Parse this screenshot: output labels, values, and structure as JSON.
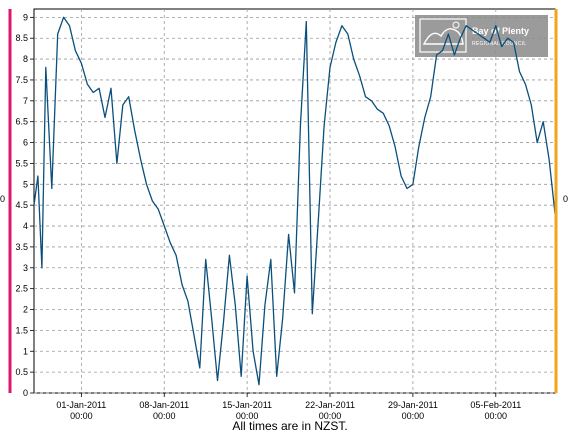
{
  "chart_data": {
    "type": "line",
    "title": "",
    "xlabel": "",
    "ylabel": "",
    "footnote": "All times are in NZST.",
    "ylim": [
      0,
      9.2
    ],
    "yticks": [
      "0",
      "0.5",
      "1",
      "1.5",
      "2",
      "2.5",
      "3",
      "3.5",
      "4",
      "4.5",
      "5",
      "5.5",
      "6",
      "6.5",
      "7",
      "7.5",
      "8",
      "8.5",
      "9"
    ],
    "xlim": [
      "2010-12-28 00:00",
      "2011-02-10 00:00"
    ],
    "xticks": [
      {
        "date": "01-Jan-2011",
        "time": "00:00"
      },
      {
        "date": "08-Jan-2011",
        "time": "00:00"
      },
      {
        "date": "15-Jan-2011",
        "time": "00:00"
      },
      {
        "date": "22-Jan-2011",
        "time": "00:00"
      },
      {
        "date": "29-Jan-2011",
        "time": "00:00"
      },
      {
        "date": "05-Feb-2011",
        "time": "00:00"
      }
    ],
    "grid": true,
    "line_color": "#0b4f7c",
    "left_axis_color": "#e0156f",
    "right_axis_color": "#f2a51a",
    "left_axis_label": "0",
    "right_axis_label": "0",
    "series": [
      {
        "x": [
          "2010-12-28 00:00",
          "2010-12-28 08:00",
          "2010-12-28 16:00",
          "2010-12-29 00:00",
          "2010-12-29 12:00",
          "2010-12-30 00:00",
          "2010-12-30 12:00",
          "2010-12-31 00:00",
          "2010-12-31 12:00",
          "2011-01-01 00:00",
          "2011-01-01 12:00",
          "2011-01-02 00:00",
          "2011-01-02 12:00",
          "2011-01-03 00:00",
          "2011-01-03 12:00",
          "2011-01-04 00:00",
          "2011-01-04 12:00",
          "2011-01-05 00:00",
          "2011-01-05 12:00",
          "2011-01-06 00:00",
          "2011-01-06 12:00",
          "2011-01-07 00:00",
          "2011-01-07 12:00",
          "2011-01-08 00:00",
          "2011-01-08 12:00",
          "2011-01-09 00:00",
          "2011-01-09 12:00",
          "2011-01-10 00:00",
          "2011-01-10 12:00",
          "2011-01-11 00:00",
          "2011-01-11 12:00",
          "2011-01-12 00:00",
          "2011-01-12 12:00",
          "2011-01-13 00:00",
          "2011-01-13 12:00",
          "2011-01-14 00:00",
          "2011-01-14 12:00",
          "2011-01-15 00:00",
          "2011-01-15 12:00",
          "2011-01-16 00:00",
          "2011-01-16 12:00",
          "2011-01-17 00:00",
          "2011-01-17 12:00",
          "2011-01-18 00:00",
          "2011-01-18 12:00",
          "2011-01-19 00:00",
          "2011-01-19 12:00",
          "2011-01-20 00:00",
          "2011-01-20 12:00",
          "2011-01-21 00:00",
          "2011-01-21 12:00",
          "2011-01-22 00:00",
          "2011-01-22 12:00",
          "2011-01-23 00:00",
          "2011-01-23 12:00",
          "2011-01-24 00:00",
          "2011-01-24 12:00",
          "2011-01-25 00:00",
          "2011-01-25 12:00",
          "2011-01-26 00:00",
          "2011-01-26 12:00",
          "2011-01-27 00:00",
          "2011-01-27 12:00",
          "2011-01-28 00:00",
          "2011-01-28 12:00",
          "2011-01-29 00:00",
          "2011-01-29 12:00",
          "2011-01-30 00:00",
          "2011-01-30 12:00",
          "2011-01-31 00:00",
          "2011-01-31 12:00",
          "2011-02-01 00:00",
          "2011-02-01 12:00",
          "2011-02-02 00:00",
          "2011-02-02 12:00",
          "2011-02-03 00:00",
          "2011-02-03 12:00",
          "2011-02-04 00:00",
          "2011-02-04 12:00",
          "2011-02-05 00:00",
          "2011-02-05 12:00",
          "2011-02-06 00:00",
          "2011-02-06 12:00",
          "2011-02-07 00:00",
          "2011-02-07 12:00",
          "2011-02-08 00:00",
          "2011-02-08 12:00",
          "2011-02-09 00:00",
          "2011-02-09 12:00",
          "2011-02-10 00:00"
        ],
        "values": [
          4.5,
          5.2,
          3.0,
          7.8,
          4.9,
          8.6,
          9.0,
          8.8,
          8.2,
          7.9,
          7.4,
          7.2,
          7.3,
          6.6,
          7.3,
          5.5,
          6.9,
          7.1,
          6.3,
          5.6,
          5.0,
          4.6,
          4.4,
          4.0,
          3.6,
          3.3,
          2.6,
          2.2,
          1.4,
          0.6,
          3.2,
          1.8,
          0.3,
          1.7,
          3.3,
          2.1,
          0.4,
          2.8,
          1.0,
          0.2,
          2.1,
          3.2,
          0.4,
          1.8,
          3.8,
          2.4,
          6.4,
          8.9,
          1.9,
          4.1,
          6.4,
          7.8,
          8.4,
          8.8,
          8.6,
          8.0,
          7.6,
          7.1,
          7.0,
          6.8,
          6.7,
          6.4,
          5.9,
          5.2,
          4.9,
          5.0,
          5.9,
          6.6,
          7.1,
          8.1,
          8.2,
          8.6,
          8.1,
          8.5,
          8.8,
          8.7,
          8.6,
          8.5,
          8.4,
          8.8,
          8.3,
          8.5,
          8.4,
          7.7,
          7.4,
          6.9,
          6.0,
          6.5,
          5.6,
          4.3
        ]
      }
    ]
  },
  "logo": {
    "name": "Bay of Plenty",
    "subtitle": "REGIONAL COUNCIL"
  }
}
